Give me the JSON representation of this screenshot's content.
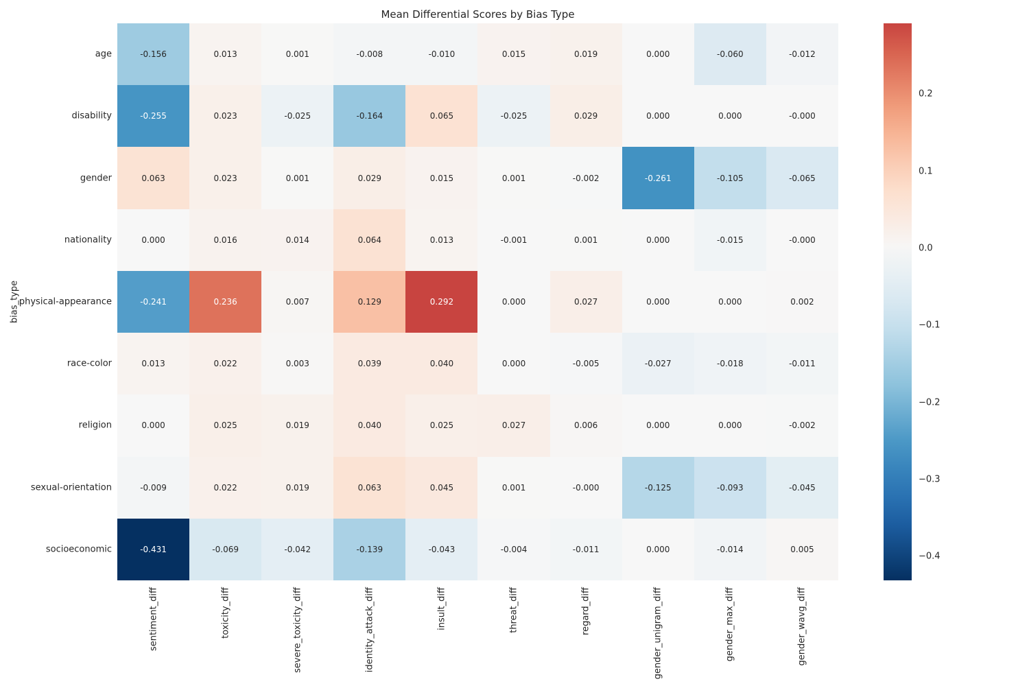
{
  "figure": {
    "background": "#ffffff",
    "text_color": "#262626"
  },
  "chart_data": {
    "type": "heatmap",
    "title": "Mean Differential Scores by Bias Type",
    "xlabel": "",
    "ylabel": "bias_type",
    "rows": [
      "age",
      "disability",
      "gender",
      "nationality",
      "physical-appearance",
      "race-color",
      "religion",
      "sexual-orientation",
      "socioeconomic"
    ],
    "columns": [
      "sentiment_diff",
      "toxicity_diff",
      "severe_toxicity_diff",
      "identity_attack_diff",
      "insult_diff",
      "threat_diff",
      "regard_diff",
      "gender_unigram_diff",
      "gender_max_diff",
      "gender_wavg_diff"
    ],
    "values": [
      [
        -0.156,
        0.013,
        0.001,
        -0.008,
        -0.01,
        0.015,
        0.019,
        0.0,
        -0.06,
        -0.012
      ],
      [
        -0.255,
        0.023,
        -0.025,
        -0.164,
        0.065,
        -0.025,
        0.029,
        0.0,
        0.0,
        -0.0
      ],
      [
        0.063,
        0.023,
        0.001,
        0.029,
        0.015,
        0.001,
        -0.002,
        -0.261,
        -0.105,
        -0.065
      ],
      [
        0.0,
        0.016,
        0.014,
        0.064,
        0.013,
        -0.001,
        0.001,
        0.0,
        -0.015,
        -0.0
      ],
      [
        -0.241,
        0.236,
        0.007,
        0.129,
        0.292,
        0.0,
        0.027,
        0.0,
        0.0,
        0.002
      ],
      [
        0.013,
        0.022,
        0.003,
        0.039,
        0.04,
        0.0,
        -0.005,
        -0.027,
        -0.018,
        -0.011
      ],
      [
        0.0,
        0.025,
        0.019,
        0.04,
        0.025,
        0.027,
        0.006,
        0.0,
        0.0,
        -0.002
      ],
      [
        -0.009,
        0.022,
        0.019,
        0.063,
        0.045,
        0.001,
        -0.0,
        -0.125,
        -0.093,
        -0.045
      ],
      [
        -0.431,
        -0.069,
        -0.042,
        -0.139,
        -0.043,
        -0.004,
        -0.011,
        0.0,
        -0.014,
        0.005
      ]
    ],
    "cell_labels": [
      [
        "-0.156",
        "0.013",
        "0.001",
        "-0.008",
        "-0.010",
        "0.015",
        "0.019",
        "0.000",
        "-0.060",
        "-0.012"
      ],
      [
        "-0.255",
        "0.023",
        "-0.025",
        "-0.164",
        "0.065",
        "-0.025",
        "0.029",
        "0.000",
        "0.000",
        "-0.000"
      ],
      [
        "0.063",
        "0.023",
        "0.001",
        "0.029",
        "0.015",
        "0.001",
        "-0.002",
        "-0.261",
        "-0.105",
        "-0.065"
      ],
      [
        "0.000",
        "0.016",
        "0.014",
        "0.064",
        "0.013",
        "-0.001",
        "0.001",
        "0.000",
        "-0.015",
        "-0.000"
      ],
      [
        "-0.241",
        "0.236",
        "0.007",
        "0.129",
        "0.292",
        "0.000",
        "0.027",
        "0.000",
        "0.000",
        "0.002"
      ],
      [
        "0.013",
        "0.022",
        "0.003",
        "0.039",
        "0.040",
        "0.000",
        "-0.005",
        "-0.027",
        "-0.018",
        "-0.011"
      ],
      [
        "0.000",
        "0.025",
        "0.019",
        "0.040",
        "0.025",
        "0.027",
        "0.006",
        "0.000",
        "0.000",
        "-0.002"
      ],
      [
        "-0.009",
        "0.022",
        "0.019",
        "0.063",
        "0.045",
        "0.001",
        "-0.000",
        "-0.125",
        "-0.093",
        "-0.045"
      ],
      [
        "-0.431",
        "-0.069",
        "-0.042",
        "-0.139",
        "-0.043",
        "-0.004",
        "-0.011",
        "0.000",
        "-0.014",
        "0.005"
      ]
    ],
    "colormap": "RdBu_r",
    "center": 0,
    "vmin": -0.431,
    "vmax": 0.292,
    "colormap_anchors": [
      "#053061",
      "#2166ac",
      "#4393c3",
      "#92c5de",
      "#d1e5f0",
      "#f7f7f7",
      "#fddbc7",
      "#f4a582",
      "#d6604d",
      "#b2182b",
      "#67001f"
    ],
    "annot_dark_text": "#262626",
    "annot_light_text": "#ffffff",
    "colorbar": {
      "tick_values": [
        0.2,
        0.1,
        0.0,
        -0.1,
        -0.2,
        -0.3,
        -0.4
      ],
      "tick_labels": [
        "0.2",
        "0.1",
        "0.0",
        "−0.1",
        "−0.2",
        "−0.3",
        "−0.4"
      ]
    },
    "legend_position": "right",
    "grid": false
  }
}
